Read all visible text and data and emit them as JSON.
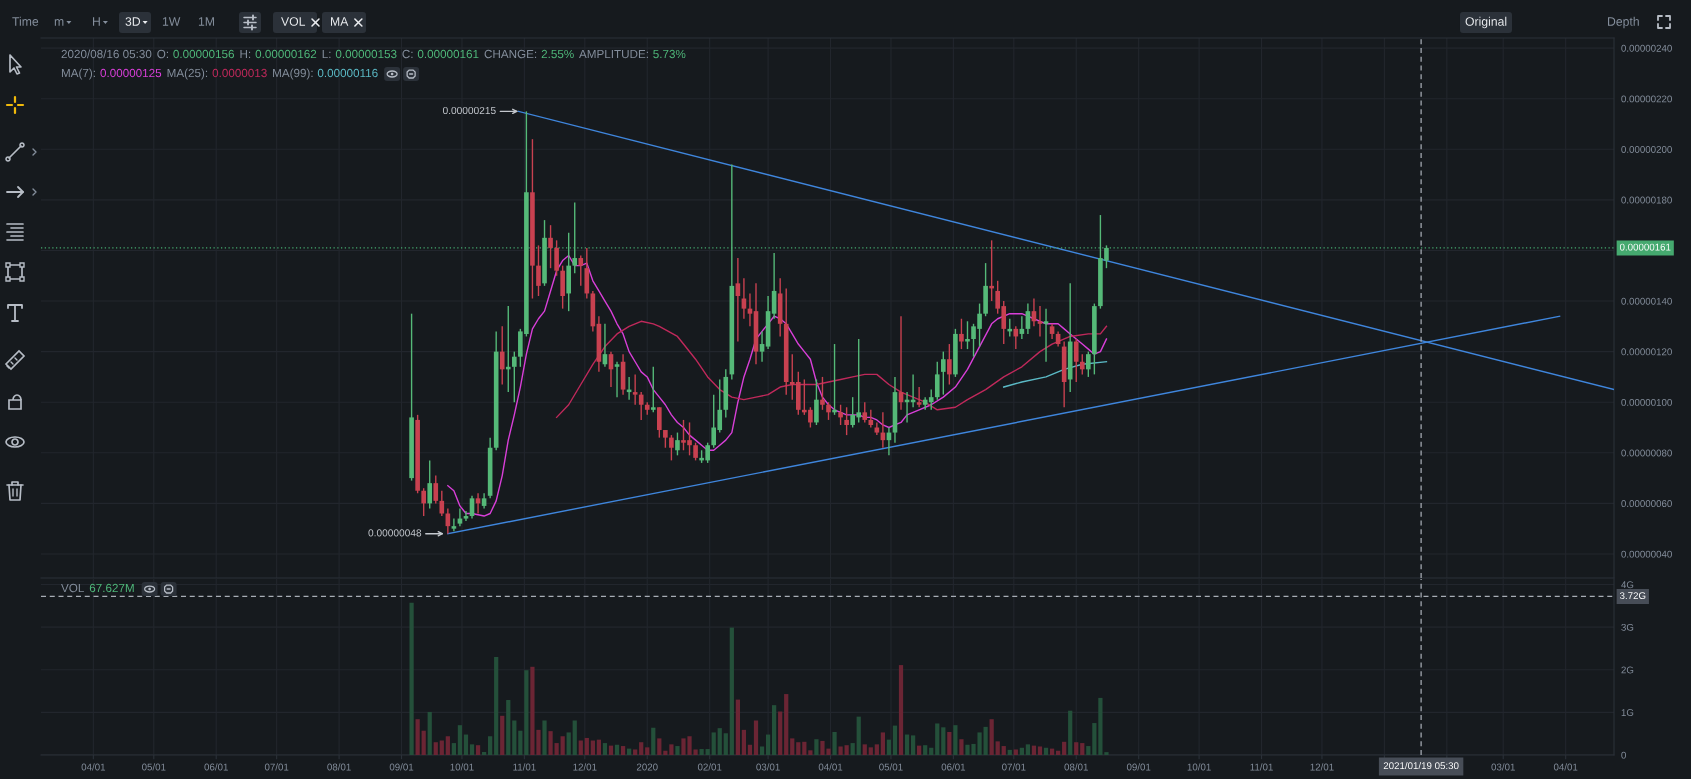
{
  "chart_data": [
    {
      "type": "other",
      "annotations": [
        "Time",
        "m",
        "H",
        "3D",
        "1W",
        "1M",
        "VOL",
        "MA",
        "Original",
        "Depth"
      ]
    },
    {
      "type": "candlestick",
      "subtitle": "MA(7): 0.00000125 MA(25): 0.0000013 MA(99): 0.00000116",
      "x": [
        "2019-09-06",
        "2019-09-09",
        "2019-09-12",
        "2019-09-15",
        "2019-09-18",
        "2019-09-21",
        "2019-09-24",
        "2019-09-27",
        "2019-09-30",
        "2019-10-03",
        "2019-10-06",
        "2019-10-09",
        "2019-10-12",
        "2019-10-15",
        "2019-10-18",
        "2019-10-21",
        "2019-10-24",
        "2019-10-27",
        "2019-10-30",
        "2019-11-02",
        "2019-11-05",
        "2019-11-08",
        "2019-11-11",
        "2019-11-14",
        "2019-11-17",
        "2019-11-20",
        "2019-11-23",
        "2019-11-26",
        "2019-11-29",
        "2019-12-02",
        "2019-12-05",
        "2019-12-08",
        "2019-12-11",
        "2019-12-14",
        "2019-12-17",
        "2019-12-20",
        "2019-12-23",
        "2019-12-26",
        "2019-12-29",
        "2020-01-01",
        "2020-01-04",
        "2020-01-07",
        "2020-01-10",
        "2020-01-13",
        "2020-01-16",
        "2020-01-19",
        "2020-01-22",
        "2020-01-25",
        "2020-01-28",
        "2020-01-31",
        "2020-02-03",
        "2020-02-06",
        "2020-02-09",
        "2020-02-12",
        "2020-02-15",
        "2020-02-18",
        "2020-02-21",
        "2020-02-24",
        "2020-02-27",
        "2020-03-01",
        "2020-03-04",
        "2020-03-07",
        "2020-03-10",
        "2020-03-13",
        "2020-03-16",
        "2020-03-19",
        "2020-03-22",
        "2020-03-25",
        "2020-03-28",
        "2020-03-31",
        "2020-04-03",
        "2020-04-06",
        "2020-04-09",
        "2020-04-12",
        "2020-04-15",
        "2020-04-18",
        "2020-04-21",
        "2020-04-24",
        "2020-04-27",
        "2020-04-30",
        "2020-05-03",
        "2020-05-06",
        "2020-05-09",
        "2020-05-12",
        "2020-05-15",
        "2020-05-18",
        "2020-05-21",
        "2020-05-24",
        "2020-05-27",
        "2020-05-30",
        "2020-06-02",
        "2020-06-05",
        "2020-06-08",
        "2020-06-11",
        "2020-06-14",
        "2020-06-17",
        "2020-06-20",
        "2020-06-23",
        "2020-06-26",
        "2020-06-29",
        "2020-07-02",
        "2020-07-05",
        "2020-07-08",
        "2020-07-11",
        "2020-07-14",
        "2020-07-17",
        "2020-07-20",
        "2020-07-23",
        "2020-07-26",
        "2020-07-29",
        "2020-08-01",
        "2020-08-04",
        "2020-08-07",
        "2020-08-10",
        "2020-08-13",
        "2020-08-16"
      ],
      "ohlc": [
        [
          7e-07,
          1.35e-06,
          6.9e-07,
          9.4e-07
        ],
        [
          9.3e-07,
          9.5e-07,
          6.4e-07,
          6.5e-07
        ],
        [
          6.5e-07,
          6.6e-07,
          5.5e-07,
          6e-07
        ],
        [
          6e-07,
          7.7e-07,
          5.8e-07,
          6.8e-07
        ],
        [
          6.8e-07,
          7.1e-07,
          6e-07,
          6.1e-07
        ],
        [
          6.1e-07,
          6.5e-07,
          5.5e-07,
          5.6e-07
        ],
        [
          5.6e-07,
          5.8e-07,
          4.8e-07,
          5.1e-07
        ],
        [
          5e-07,
          5.4e-07,
          4.9e-07,
          5.1e-07
        ],
        [
          5.2e-07,
          5.8e-07,
          5.1e-07,
          5.4e-07
        ],
        [
          5.4e-07,
          5.7e-07,
          5.3e-07,
          5.5e-07
        ],
        [
          5.5e-07,
          6.3e-07,
          5.4e-07,
          6.2e-07
        ],
        [
          6.2e-07,
          6.4e-07,
          5.6e-07,
          6e-07
        ],
        [
          5.9e-07,
          6.4e-07,
          5.8e-07,
          6.2e-07
        ],
        [
          6.3e-07,
          8.6e-07,
          6.2e-07,
          8.2e-07
        ],
        [
          8.2e-07,
          1.28e-06,
          8.1e-07,
          1.2e-06
        ],
        [
          1.2e-06,
          1.3e-06,
          1.07e-06,
          1.13e-06
        ],
        [
          1.13e-06,
          1.38e-06,
          1.04e-06,
          1.14e-06
        ],
        [
          1.14e-06,
          1.2e-06,
          1e-06,
          1.18e-06
        ],
        [
          1.18e-06,
          1.29e-06,
          1.14e-06,
          1.28e-06
        ],
        [
          1.27e-06,
          2.15e-06,
          1.26e-06,
          1.83e-06
        ],
        [
          1.83e-06,
          2.04e-06,
          1.41e-06,
          1.54e-06
        ],
        [
          1.54e-06,
          1.62e-06,
          1.42e-06,
          1.46e-06
        ],
        [
          1.47e-06,
          1.72e-06,
          1.46e-06,
          1.65e-06
        ],
        [
          1.65e-06,
          1.7e-06,
          1.53e-06,
          1.61e-06
        ],
        [
          1.61e-06,
          1.64e-06,
          1.5e-06,
          1.52e-06
        ],
        [
          1.52e-06,
          1.54e-06,
          1.37e-06,
          1.42e-06
        ],
        [
          1.43e-06,
          1.67e-06,
          1.36e-06,
          1.54e-06
        ],
        [
          1.54e-06,
          1.79e-06,
          1.51e-06,
          1.57e-06
        ],
        [
          1.57e-06,
          1.58e-06,
          1.46e-06,
          1.54e-06
        ],
        [
          1.53e-06,
          1.61e-06,
          1.41e-06,
          1.43e-06
        ],
        [
          1.43e-06,
          1.44e-06,
          1.28e-06,
          1.3e-06
        ],
        [
          1.31e-06,
          1.34e-06,
          1.12e-06,
          1.16e-06
        ],
        [
          1.15e-06,
          1.31e-06,
          1.14e-06,
          1.19e-06
        ],
        [
          1.19e-06,
          1.2e-06,
          1.06e-06,
          1.13e-06
        ],
        [
          1.14e-06,
          1.16e-06,
          1.02e-06,
          1.15e-06
        ],
        [
          1.16e-06,
          1.19e-06,
          1.03e-06,
          1.05e-06
        ],
        [
          1.04e-06,
          1.1e-06,
          1.01e-06,
          1.05e-06
        ],
        [
          1.04e-06,
          1.11e-06,
          9.9e-07,
          1.03e-06
        ],
        [
          1.03e-06,
          1.04e-06,
          9.3e-07,
          9.9e-07
        ],
        [
          9.9e-07,
          1e-06,
          9.5e-07,
          9.7e-07
        ],
        [
          9.7e-07,
          1.14e-06,
          9.6e-07,
          9.8e-07
        ],
        [
          9.8e-07,
          9.8e-07,
          8.6e-07,
          8.9e-07
        ],
        [
          8.9e-07,
          8.9e-07,
          8.2e-07,
          8.6e-07
        ],
        [
          8.6e-07,
          8.7e-07,
          7.7e-07,
          8.2e-07
        ],
        [
          8.1e-07,
          8.8e-07,
          7.9e-07,
          8.5e-07
        ],
        [
          8.5e-07,
          9.3e-07,
          8.1e-07,
          8.4e-07
        ],
        [
          8.5e-07,
          9.2e-07,
          7.9e-07,
          8.3e-07
        ],
        [
          8.3e-07,
          8.4e-07,
          7.7e-07,
          7.8e-07
        ],
        [
          7.7e-07,
          8.1e-07,
          7.6e-07,
          7.8e-07
        ],
        [
          7.7e-07,
          8.4e-07,
          7.6e-07,
          8.3e-07
        ],
        [
          8.3e-07,
          1.03e-06,
          8.2e-07,
          9e-07
        ],
        [
          8.9e-07,
          1.09e-06,
          8.8e-07,
          9.7e-07
        ],
        [
          9.7e-07,
          1.13e-06,
          9.4e-07,
          1.1e-06
        ],
        [
          1.11e-06,
          1.94e-06,
          1.09e-06,
          1.46e-06
        ],
        [
          1.47e-06,
          1.57e-06,
          1.24e-06,
          1.42e-06
        ],
        [
          1.41e-06,
          1.49e-06,
          1.33e-06,
          1.37e-06
        ],
        [
          1.37e-06,
          1.43e-06,
          1.3e-06,
          1.35e-06
        ],
        [
          1.36e-06,
          1.47e-06,
          1.15e-06,
          1.2e-06
        ],
        [
          1.2e-06,
          1.28e-06,
          1.16e-06,
          1.23e-06
        ],
        [
          1.22e-06,
          1.42e-06,
          1.21e-06,
          1.36e-06
        ],
        [
          1.35e-06,
          1.59e-06,
          1.33e-06,
          1.44e-06
        ],
        [
          1.43e-06,
          1.49e-06,
          1.26e-06,
          1.31e-06
        ],
        [
          1.31e-06,
          1.45e-06,
          1.03e-06,
          1.08e-06
        ],
        [
          1.08e-06,
          1.19e-06,
          1.01e-06,
          1.07e-06
        ],
        [
          1.08e-06,
          1.12e-06,
          9.5e-07,
          9.7e-07
        ],
        [
          9.7e-07,
          1.09e-06,
          9.5e-07,
          9.6e-07
        ],
        [
          9.7e-07,
          9.8e-07,
          9e-07,
          9.2e-07
        ],
        [
          9.2e-07,
          1.09e-06,
          9.1e-07,
          1.01e-06
        ],
        [
          1.01e-06,
          1.1e-06,
          9.7e-07,
          9.9e-07
        ],
        [
          9.9e-07,
          1e-06,
          9.3e-07,
          9.6e-07
        ],
        [
          9.6e-07,
          1.23e-06,
          9.5e-07,
          9.7e-07
        ],
        [
          9.6e-07,
          9.9e-07,
          9.1e-07,
          9.4e-07
        ],
        [
          9.3e-07,
          9.8e-07,
          8.7e-07,
          9.1e-07
        ],
        [
          9.1e-07,
          1.02e-06,
          9e-07,
          9.5e-07
        ],
        [
          9.4e-07,
          1.25e-06,
          9.2e-07,
          9.6e-07
        ],
        [
          9.6e-07,
          1e-06,
          9.2e-07,
          9.3e-07
        ],
        [
          9.3e-07,
          9.7e-07,
          9e-07,
          9.1e-07
        ],
        [
          9e-07,
          9.2e-07,
          8.7e-07,
          8.8e-07
        ],
        [
          8.8e-07,
          9.6e-07,
          8.2e-07,
          8.5e-07
        ],
        [
          8.5e-07,
          9e-07,
          7.9e-07,
          8.8e-07
        ],
        [
          8.8e-07,
          1.1e-06,
          8.4e-07,
          1.04e-06
        ],
        [
          1.04e-06,
          1.34e-06,
          9.7e-07,
          1e-06
        ],
        [
          1e-06,
          1.04e-06,
          9.2e-07,
          1.01e-06
        ],
        [
          1e-06,
          1.11e-06,
          9.8e-07,
          1.01e-06
        ],
        [
          1e-06,
          1.06e-06,
          9.8e-07,
          9.9e-07
        ],
        [
          9.9e-07,
          1.02e-06,
          9.7e-07,
          1.01e-06
        ],
        [
          1e-06,
          1.05e-06,
          9.7e-07,
          1.02e-06
        ],
        [
          1.02e-06,
          1.16e-06,
          1.01e-06,
          1.11e-06
        ],
        [
          1.12e-06,
          1.2e-06,
          1.03e-06,
          1.17e-06
        ],
        [
          1.17e-06,
          1.23e-06,
          1.07e-06,
          1.11e-06
        ],
        [
          1.11e-06,
          1.29e-06,
          1.1e-06,
          1.27e-06
        ],
        [
          1.27e-06,
          1.33e-06,
          1.21e-06,
          1.24e-06
        ],
        [
          1.24e-06,
          1.32e-06,
          1.21e-06,
          1.25e-06
        ],
        [
          1.25e-06,
          1.31e-06,
          1.18e-06,
          1.3e-06
        ],
        [
          1.29e-06,
          1.39e-06,
          1.22e-06,
          1.35e-06
        ],
        [
          1.35e-06,
          1.55e-06,
          1.34e-06,
          1.46e-06
        ],
        [
          1.46e-06,
          1.64e-06,
          1.4e-06,
          1.45e-06
        ],
        [
          1.44e-06,
          1.48e-06,
          1.35e-06,
          1.37e-06
        ],
        [
          1.38e-06,
          1.4e-06,
          1.23e-06,
          1.29e-06
        ],
        [
          1.28e-06,
          1.33e-06,
          1.26e-06,
          1.29e-06
        ],
        [
          1.29e-06,
          1.3e-06,
          1.21e-06,
          1.26e-06
        ],
        [
          1.27e-06,
          1.34e-06,
          1.25e-06,
          1.29e-06
        ],
        [
          1.29e-06,
          1.39e-06,
          1.27e-06,
          1.36e-06
        ],
        [
          1.36e-06,
          1.41e-06,
          1.3e-06,
          1.32e-06
        ],
        [
          1.32e-06,
          1.38e-06,
          1.26e-06,
          1.31e-06
        ],
        [
          1.31e-06,
          1.37e-06,
          1.16e-06,
          1.32e-06
        ],
        [
          1.3e-06,
          1.31e-06,
          1.25e-06,
          1.27e-06
        ],
        [
          1.27e-06,
          1.28e-06,
          1.22e-06,
          1.23e-06
        ],
        [
          1.22e-06,
          1.24e-06,
          9.8e-07,
          1.08e-06
        ],
        [
          1.09e-06,
          1.47e-06,
          1.04e-06,
          1.24e-06
        ],
        [
          1.24e-06,
          1.25e-06,
          1.08e-06,
          1.16e-06
        ],
        [
          1.16e-06,
          1.19e-06,
          1.11e-06,
          1.13e-06
        ],
        [
          1.13e-06,
          1.2e-06,
          1.1e-06,
          1.19e-06
        ],
        [
          1.19e-06,
          1.39e-06,
          1.11e-06,
          1.38e-06
        ],
        [
          1.38e-06,
          1.74e-06,
          1.37e-06,
          1.57e-06
        ],
        [
          1.56e-06,
          1.62e-06,
          1.53e-06,
          1.61e-06
        ]
      ],
      "colors": [
        "#55b978",
        "#c84150",
        "#c84150",
        "#55b978",
        "#c84150",
        "#c84150",
        "#c84150",
        "#55b978",
        "#55b978",
        "#55b978",
        "#55b978",
        "#c84150",
        "#55b978",
        "#55b978",
        "#55b978",
        "#c84150",
        "#55b978",
        "#55b978",
        "#55b978",
        "#55b978",
        "#c84150",
        "#c84150",
        "#55b978",
        "#c84150",
        "#c84150",
        "#c84150",
        "#55b978",
        "#55b978",
        "#c84150",
        "#c84150",
        "#c84150",
        "#c84150",
        "#55b978",
        "#c84150",
        "#55b978",
        "#c84150",
        "#55b978",
        "#c84150",
        "#c84150",
        "#c84150",
        "#55b978",
        "#c84150",
        "#c84150",
        "#c84150",
        "#55b978",
        "#c84150",
        "#c84150",
        "#c84150",
        "#55b978",
        "#55b978",
        "#55b978",
        "#55b978",
        "#55b978",
        "#55b978",
        "#c84150",
        "#c84150",
        "#c84150",
        "#c84150",
        "#55b978",
        "#55b978",
        "#55b978",
        "#c84150",
        "#c84150",
        "#c84150",
        "#c84150",
        "#c84150",
        "#c84150",
        "#55b978",
        "#c84150",
        "#c84150",
        "#55b978",
        "#c84150",
        "#c84150",
        "#55b978",
        "#55b978",
        "#c84150",
        "#c84150",
        "#c84150",
        "#c84150",
        "#55b978",
        "#55b978",
        "#c84150",
        "#55b978",
        "#55b978",
        "#c84150",
        "#55b978",
        "#55b978",
        "#55b978",
        "#55b978",
        "#c84150",
        "#55b978",
        "#c84150",
        "#55b978",
        "#55b978",
        "#55b978",
        "#55b978",
        "#c84150",
        "#c84150",
        "#c84150",
        "#55b978",
        "#c84150",
        "#55b978",
        "#55b978",
        "#c84150",
        "#c84150",
        "#55b978",
        "#c84150",
        "#c84150",
        "#c84150",
        "#55b978",
        "#c84150",
        "#c84150",
        "#55b978",
        "#55b978",
        "#55b978",
        "#55b978"
      ],
      "series": [
        {
          "type": "line",
          "color": "#d93fd9",
          "x": [
            "2019-09-24",
            "2019-09-27",
            "2019-09-30",
            "2019-10-03",
            "2019-10-06",
            "2019-10-12",
            "2019-10-15",
            "2019-10-18",
            "2019-10-21",
            "2019-10-24",
            "2019-10-27",
            "2019-10-30",
            "2019-11-02",
            "2019-11-05",
            "2019-11-08",
            "2019-11-11",
            "2019-11-14",
            "2019-11-17",
            "2019-11-20",
            "2019-11-23",
            "2019-11-26",
            "2019-11-29",
            "2019-12-02",
            "2019-12-05",
            "2019-12-08",
            "2019-12-11",
            "2019-12-14",
            "2019-12-17",
            "2019-12-20",
            "2019-12-23",
            "2019-12-26",
            "2019-12-29",
            "2020-01-01",
            "2020-01-04",
            "2020-01-07",
            "2020-01-10",
            "2020-01-13",
            "2020-01-16",
            "2020-01-19",
            "2020-01-22",
            "2020-01-25",
            "2020-01-28",
            "2020-01-31",
            "2020-02-03",
            "2020-02-06",
            "2020-02-09",
            "2020-02-12",
            "2020-02-15",
            "2020-02-18",
            "2020-02-21",
            "2020-02-24",
            "2020-02-27",
            "2020-03-01",
            "2020-03-04",
            "2020-03-07",
            "2020-03-10",
            "2020-03-13",
            "2020-03-16",
            "2020-03-19",
            "2020-03-22",
            "2020-03-25",
            "2020-03-28",
            "2020-03-31",
            "2020-04-03",
            "2020-04-06",
            "2020-04-09",
            "2020-04-12",
            "2020-04-15",
            "2020-04-18",
            "2020-04-21",
            "2020-04-24",
            "2020-04-27",
            "2020-04-30",
            "2020-05-03",
            "2020-05-06",
            "2020-05-09",
            "2020-05-15",
            "2020-05-21",
            "2020-05-27",
            "2020-06-02",
            "2020-06-08",
            "2020-06-14",
            "2020-06-20",
            "2020-06-23",
            "2020-06-29",
            "2020-07-05",
            "2020-07-11",
            "2020-07-17",
            "2020-07-23",
            "2020-07-26",
            "2020-07-29",
            "2020-08-04",
            "2020-08-07",
            "2020-08-10",
            "2020-08-13",
            "2020-08-16"
          ],
          "values": [
            6.7e-07,
            6.5e-07,
            5.9e-07,
            5.6e-07,
            5.6e-07,
            5.5e-07,
            5.6e-07,
            6.1e-07,
            7.1e-07,
            8.5e-07,
            9.5e-07,
            1.06e-06,
            1.19e-06,
            1.29e-06,
            1.33e-06,
            1.36e-06,
            1.44e-06,
            1.52e-06,
            1.56e-06,
            1.58e-06,
            1.54e-06,
            1.54e-06,
            1.55e-06,
            1.48e-06,
            1.44e-06,
            1.4e-06,
            1.36e-06,
            1.31e-06,
            1.27e-06,
            1.2e-06,
            1.16e-06,
            1.12e-06,
            1.1e-06,
            1.05e-06,
            1.02e-06,
            9.9e-07,
            9.5e-07,
            9.2e-07,
            9e-07,
            8.7e-07,
            8.5e-07,
            8.3e-07,
            8.1e-07,
            8.1e-07,
            8.3e-07,
            8.5e-07,
            8.8e-07,
            1e-06,
            1.1e-06,
            1.17e-06,
            1.25e-06,
            1.28e-06,
            1.31e-06,
            1.34e-06,
            1.33e-06,
            1.31e-06,
            1.27e-06,
            1.23e-06,
            1.2e-06,
            1.17e-06,
            1.08e-06,
            1.02e-06,
            9.9e-07,
            9.7e-07,
            9.6e-07,
            9.5e-07,
            9.5e-07,
            9.5e-07,
            9.4e-07,
            9.4e-07,
            9.3e-07,
            9.1e-07,
            9e-07,
            9.1e-07,
            9.2e-07,
            9.5e-07,
            9.7e-07,
            9.9e-07,
            1.02e-06,
            1.06e-06,
            1.13e-06,
            1.22e-06,
            1.31e-06,
            1.33e-06,
            1.35e-06,
            1.35e-06,
            1.33e-06,
            1.31e-06,
            1.31e-06,
            1.29e-06,
            1.27e-06,
            1.23e-06,
            1.21e-06,
            1.19e-06,
            1.2e-06,
            1.25e-06
          ]
        },
        {
          "type": "line",
          "color": "#c0295b",
          "x": [
            "2019-11-17",
            "2019-11-23",
            "2019-11-29",
            "2019-12-05",
            "2019-12-11",
            "2019-12-17",
            "2019-12-23",
            "2019-12-29",
            "2020-01-04",
            "2020-01-07",
            "2020-01-16",
            "2020-01-19",
            "2020-01-25",
            "2020-01-31",
            "2020-02-06",
            "2020-02-12",
            "2020-02-18",
            "2020-02-24",
            "2020-03-01",
            "2020-03-07",
            "2020-03-13",
            "2020-03-19",
            "2020-03-25",
            "2020-03-31",
            "2020-04-06",
            "2020-04-12",
            "2020-04-18",
            "2020-04-24",
            "2020-04-30",
            "2020-05-06",
            "2020-05-12",
            "2020-05-18",
            "2020-05-24",
            "2020-06-02",
            "2020-06-08",
            "2020-06-17",
            "2020-06-26",
            "2020-07-05",
            "2020-07-14",
            "2020-07-20",
            "2020-07-29",
            "2020-08-07",
            "2020-08-13",
            "2020-08-16"
          ],
          "values": [
            9.4e-07,
            9.9e-07,
            1.07e-06,
            1.15e-06,
            1.22e-06,
            1.27e-06,
            1.3e-06,
            1.32e-06,
            1.31e-06,
            1.3e-06,
            1.26e-06,
            1.23e-06,
            1.17e-06,
            1.1e-06,
            1.05e-06,
            1.02e-06,
            1.01e-06,
            1.02e-06,
            1.03e-06,
            1.06e-06,
            1.07e-06,
            1.07e-06,
            1.07e-06,
            1.08e-06,
            1.09e-06,
            1.1e-06,
            1.11e-06,
            1.11e-06,
            1.07e-06,
            1.04e-06,
            1.02e-06,
            1e-06,
            9.7e-07,
            9.8e-07,
            1.01e-06,
            1.05e-06,
            1.1e-06,
            1.14e-06,
            1.2e-06,
            1.23e-06,
            1.26e-06,
            1.27e-06,
            1.27e-06,
            1.3e-06
          ]
        },
        {
          "type": "line",
          "color": "#5bbac6",
          "x": [
            "2020-06-26",
            "2020-07-05",
            "2020-07-17",
            "2020-07-26",
            "2020-08-04",
            "2020-08-16"
          ],
          "values": [
            1.06e-06,
            1.08e-06,
            1.1e-06,
            1.13e-06,
            1.15e-06,
            1.16e-06
          ]
        },
        {
          "type": "line",
          "color": "#3f86dd",
          "x": [
            "2019-10-29",
            "2021-04-25"
          ],
          "values": [
            2.15e-06,
            1.05e-06
          ]
        },
        {
          "type": "line",
          "color": "#3f86dd",
          "x": [
            "2019-09-24",
            "2021-03-29"
          ],
          "values": [
            4.8e-07,
            1.34e-06
          ]
        }
      ],
      "xlim": [
        "2019-03-06",
        "2021-04-25"
      ],
      "xticks": [
        "2019-04-01",
        "2019-05-01",
        "2019-06-01",
        "2019-07-01",
        "2019-08-01",
        "2019-09-01",
        "2019-10-01",
        "2019-11-01",
        "2019-12-01",
        "2020-01-01",
        "2020-02-01",
        "2020-03-01",
        "2020-04-01",
        "2020-05-01",
        "2020-06-01",
        "2020-07-01",
        "2020-08-01",
        "2020-09-01",
        "2020-10-01",
        "2020-11-01",
        "2020-12-01",
        "2021-01-01",
        "2021-02-01",
        "2021-03-01",
        "2021-04-01"
      ],
      "ylim": [
        3.05e-07,
        2.44e-06
      ],
      "yticks": [
        {
          "value": 4e-07,
          "label": "0.00000040"
        },
        {
          "value": 6e-07,
          "label": "0.00000060"
        },
        {
          "value": 8e-07,
          "label": "0.00000080"
        },
        {
          "value": 1e-06,
          "label": "0.00000100"
        },
        {
          "value": 1.2e-06,
          "label": "0.00000120"
        },
        {
          "value": 1.4e-06,
          "label": "0.00000140"
        },
        {
          "value": 1.6e-06,
          "label": null
        },
        {
          "value": 1.8e-06,
          "label": "0.00000180"
        },
        {
          "value": 2e-06,
          "label": "0.00000200"
        },
        {
          "value": 2.2e-06,
          "label": "0.00000220"
        },
        {
          "value": 2.4e-06,
          "label": "0.00000240"
        }
      ],
      "tick_labels": "y",
      "grid": true,
      "ref_lines": [
        {
          "axis": "y",
          "value": 1.61e-06,
          "label": "0.00000161",
          "color": "#45a96f",
          "line_style": "dotted"
        },
        {
          "axis": "x",
          "value": "2021-01-19T05:30",
          "color": "#a7adb5",
          "line_style": "dashed"
        }
      ],
      "annotations": [
        "2020/08/16 05:30",
        "O: 0.00000156",
        "H: 0.00000162",
        "L: 0.00000153",
        "C: 0.00000161",
        "CHANGE: 2.55%",
        "AMPLITUDE: 5.73%",
        {
          "text": "0.00000215",
          "x": "2019-10-29",
          "y": 2.15e-06
        },
        {
          "text": "0.00000048",
          "x": "2019-09-22",
          "y": 4.8e-07
        }
      ]
    },
    {
      "type": "bar",
      "title": "VOL",
      "annotations": [
        "67.627M"
      ],
      "x": [
        "2019-09-06",
        "2019-09-09",
        "2019-09-12",
        "2019-09-15",
        "2019-09-18",
        "2019-09-21",
        "2019-09-24",
        "2019-09-27",
        "2019-09-30",
        "2019-10-03",
        "2019-10-06",
        "2019-10-09",
        "2019-10-12",
        "2019-10-15",
        "2019-10-18",
        "2019-10-21",
        "2019-10-24",
        "2019-10-27",
        "2019-10-30",
        "2019-11-02",
        "2019-11-05",
        "2019-11-08",
        "2019-11-11",
        "2019-11-14",
        "2019-11-17",
        "2019-11-20",
        "2019-11-23",
        "2019-11-26",
        "2019-11-29",
        "2019-12-02",
        "2019-12-05",
        "2019-12-08",
        "2019-12-11",
        "2019-12-14",
        "2019-12-17",
        "2019-12-20",
        "2019-12-23",
        "2019-12-26",
        "2019-12-29",
        "2020-01-01",
        "2020-01-04",
        "2020-01-07",
        "2020-01-10",
        "2020-01-13",
        "2020-01-16",
        "2020-01-19",
        "2020-01-22",
        "2020-01-25",
        "2020-01-28",
        "2020-01-31",
        "2020-02-03",
        "2020-02-06",
        "2020-02-09",
        "2020-02-12",
        "2020-02-15",
        "2020-02-18",
        "2020-02-21",
        "2020-02-24",
        "2020-02-27",
        "2020-03-01",
        "2020-03-04",
        "2020-03-07",
        "2020-03-10",
        "2020-03-13",
        "2020-03-16",
        "2020-03-19",
        "2020-03-22",
        "2020-03-25",
        "2020-03-28",
        "2020-03-31",
        "2020-04-03",
        "2020-04-06",
        "2020-04-09",
        "2020-04-12",
        "2020-04-15",
        "2020-04-18",
        "2020-04-21",
        "2020-04-24",
        "2020-04-27",
        "2020-04-30",
        "2020-05-03",
        "2020-05-06",
        "2020-05-09",
        "2020-05-12",
        "2020-05-15",
        "2020-05-18",
        "2020-05-21",
        "2020-05-24",
        "2020-05-27",
        "2020-05-30",
        "2020-06-02",
        "2020-06-05",
        "2020-06-08",
        "2020-06-11",
        "2020-06-14",
        "2020-06-17",
        "2020-06-20",
        "2020-06-23",
        "2020-06-26",
        "2020-06-29",
        "2020-07-02",
        "2020-07-05",
        "2020-07-08",
        "2020-07-11",
        "2020-07-14",
        "2020-07-17",
        "2020-07-20",
        "2020-07-23",
        "2020-07-26",
        "2020-07-29",
        "2020-08-01",
        "2020-08-04",
        "2020-08-07",
        "2020-08-10",
        "2020-08-13",
        "2020-08-16"
      ],
      "values": [
        3.57,
        0.84,
        0.57,
        1.01,
        0.3,
        0.34,
        0.44,
        0.28,
        0.7,
        0.48,
        0.25,
        0.23,
        0.07,
        0.44,
        2.3,
        0.92,
        1.29,
        0.81,
        0.57,
        1.99,
        2.07,
        0.59,
        0.81,
        0.56,
        0.28,
        0.44,
        0.53,
        0.81,
        0.34,
        0.4,
        0.34,
        0.36,
        0.28,
        0.22,
        0.24,
        0.21,
        0.15,
        0.13,
        0.3,
        0.18,
        0.64,
        0.39,
        0.1,
        0.25,
        0.21,
        0.39,
        0.44,
        0.13,
        0.14,
        0.14,
        0.53,
        0.63,
        0.51,
        2.99,
        1.3,
        0.59,
        0.24,
        0.81,
        0.2,
        0.48,
        1.17,
        1.02,
        1.43,
        0.39,
        0.3,
        0.31,
        0.11,
        0.37,
        0.33,
        0.15,
        0.54,
        0.2,
        0.23,
        0.28,
        0.9,
        0.25,
        0.18,
        0.25,
        0.53,
        0.36,
        0.69,
        2.11,
        0.48,
        0.46,
        0.22,
        0.23,
        0.17,
        0.74,
        0.65,
        0.54,
        0.7,
        0.37,
        0.24,
        0.26,
        0.53,
        0.66,
        0.84,
        0.32,
        0.21,
        0.12,
        0.13,
        0.17,
        0.25,
        0.22,
        0.2,
        0.17,
        0.15,
        0.1,
        0.31,
        1.04,
        0.3,
        0.28,
        0.21,
        0.75,
        1.34,
        0.067627
      ],
      "colors": [
        "#24503a",
        "#6b2534",
        "#6b2534",
        "#24503a",
        "#6b2534",
        "#6b2534",
        "#6b2534",
        "#24503a",
        "#24503a",
        "#24503a",
        "#24503a",
        "#6b2534",
        "#24503a",
        "#24503a",
        "#24503a",
        "#6b2534",
        "#24503a",
        "#24503a",
        "#24503a",
        "#24503a",
        "#6b2534",
        "#6b2534",
        "#24503a",
        "#6b2534",
        "#6b2534",
        "#6b2534",
        "#24503a",
        "#24503a",
        "#6b2534",
        "#6b2534",
        "#6b2534",
        "#6b2534",
        "#24503a",
        "#6b2534",
        "#24503a",
        "#6b2534",
        "#24503a",
        "#6b2534",
        "#6b2534",
        "#6b2534",
        "#24503a",
        "#6b2534",
        "#6b2534",
        "#6b2534",
        "#24503a",
        "#6b2534",
        "#6b2534",
        "#6b2534",
        "#24503a",
        "#24503a",
        "#24503a",
        "#24503a",
        "#24503a",
        "#24503a",
        "#6b2534",
        "#6b2534",
        "#6b2534",
        "#6b2534",
        "#24503a",
        "#24503a",
        "#24503a",
        "#6b2534",
        "#6b2534",
        "#6b2534",
        "#6b2534",
        "#6b2534",
        "#6b2534",
        "#24503a",
        "#6b2534",
        "#6b2534",
        "#24503a",
        "#6b2534",
        "#6b2534",
        "#24503a",
        "#24503a",
        "#6b2534",
        "#6b2534",
        "#6b2534",
        "#6b2534",
        "#24503a",
        "#24503a",
        "#6b2534",
        "#24503a",
        "#24503a",
        "#6b2534",
        "#24503a",
        "#24503a",
        "#24503a",
        "#24503a",
        "#6b2534",
        "#24503a",
        "#6b2534",
        "#24503a",
        "#24503a",
        "#24503a",
        "#24503a",
        "#6b2534",
        "#6b2534",
        "#6b2534",
        "#24503a",
        "#6b2534",
        "#24503a",
        "#24503a",
        "#6b2534",
        "#6b2534",
        "#24503a",
        "#6b2534",
        "#6b2534",
        "#6b2534",
        "#24503a",
        "#6b2534",
        "#6b2534",
        "#24503a",
        "#24503a",
        "#24503a",
        "#24503a"
      ],
      "xlim": [
        "2019-03-06",
        "2021-04-25"
      ],
      "xticks": [
        {
          "value": "2019-04-01",
          "label": "04/01"
        },
        {
          "value": "2019-05-01",
          "label": "05/01"
        },
        {
          "value": "2019-06-01",
          "label": "06/01"
        },
        {
          "value": "2019-07-01",
          "label": "07/01"
        },
        {
          "value": "2019-08-01",
          "label": "08/01"
        },
        {
          "value": "2019-09-01",
          "label": "09/01"
        },
        {
          "value": "2019-10-01",
          "label": "10/01"
        },
        {
          "value": "2019-11-01",
          "label": "11/01"
        },
        {
          "value": "2019-12-01",
          "label": "12/01"
        },
        {
          "value": "2020-01-01",
          "label": "2020"
        },
        {
          "value": "2020-02-01",
          "label": "02/01"
        },
        {
          "value": "2020-03-01",
          "label": "03/01"
        },
        {
          "value": "2020-04-01",
          "label": "04/01"
        },
        {
          "value": "2020-05-01",
          "label": "05/01"
        },
        {
          "value": "2020-06-01",
          "label": "06/01"
        },
        {
          "value": "2020-07-01",
          "label": "07/01"
        },
        {
          "value": "2020-08-01",
          "label": "08/01"
        },
        {
          "value": "2020-09-01",
          "label": "09/01"
        },
        {
          "value": "2020-10-01",
          "label": "10/01"
        },
        {
          "value": "2020-11-01",
          "label": "11/01"
        },
        {
          "value": "2020-12-01",
          "label": "12/01"
        },
        {
          "value": "2021-01-01",
          "label": null
        },
        {
          "value": "2021-02-01",
          "label": null
        },
        {
          "value": "2021-03-01",
          "label": "03/01"
        },
        {
          "value": "2021-04-01",
          "label": "04/01"
        }
      ],
      "ylim": [
        0,
        4.13
      ],
      "yticks": [
        0,
        {
          "value": 1,
          "label": "1G"
        },
        {
          "value": 2,
          "label": "2G"
        },
        {
          "value": 3,
          "label": "3G"
        },
        {
          "value": 4,
          "label": "4G"
        }
      ],
      "grid": true,
      "ref_lines": [
        {
          "axis": "y",
          "value": 3.72,
          "label": "3.72G",
          "color": "#a7adb5",
          "line_style": "dashed"
        },
        {
          "axis": "x",
          "value": "2021-01-19T05:30",
          "label": "2021/01/19 05:30",
          "color": "#a7adb5",
          "line_style": "dashed"
        }
      ]
    }
  ]
}
